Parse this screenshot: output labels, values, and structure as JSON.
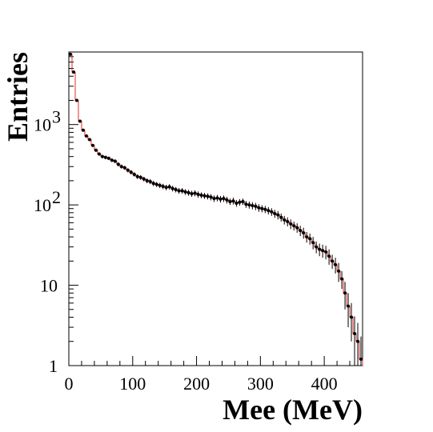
{
  "chart_data": {
    "type": "scatter",
    "xlabel": "Mee (MeV)",
    "ylabel": "Entries",
    "xlim": [
      0,
      460
    ],
    "ylim": [
      1,
      8000
    ],
    "yscale": "log",
    "grid": false,
    "x_ticks": [
      {
        "value": 0,
        "label": "0"
      },
      {
        "value": 100,
        "label": "100"
      },
      {
        "value": 200,
        "label": "200"
      },
      {
        "value": 300,
        "label": "300"
      },
      {
        "value": 400,
        "label": "400"
      }
    ],
    "y_ticks": [
      {
        "value": 1,
        "label": "1"
      },
      {
        "value": 10,
        "label": "10"
      },
      {
        "value": 100,
        "label": "10",
        "exp": "2"
      },
      {
        "value": 1000,
        "label": "10",
        "exp": "3"
      }
    ],
    "series": [
      {
        "kind": "data_points",
        "color": "#000000",
        "x": [
          2.5,
          7.5,
          12.5,
          17.5,
          22.5,
          27.5,
          32.5,
          37.5,
          42.5,
          47.5,
          52.5,
          57.5,
          62.5,
          67.5,
          72.5,
          77.5,
          82.5,
          87.5,
          92.5,
          97.5,
          102.5,
          107.5,
          112.5,
          117.5,
          122.5,
          127.5,
          132.5,
          137.5,
          142.5,
          147.5,
          152.5,
          157.5,
          162.5,
          167.5,
          172.5,
          177.5,
          182.5,
          187.5,
          192.5,
          197.5,
          202.5,
          207.5,
          212.5,
          217.5,
          222.5,
          227.5,
          232.5,
          237.5,
          242.5,
          247.5,
          252.5,
          257.5,
          262.5,
          267.5,
          272.5,
          277.5,
          282.5,
          287.5,
          292.5,
          297.5,
          302.5,
          307.5,
          312.5,
          317.5,
          322.5,
          327.5,
          332.5,
          337.5,
          342.5,
          347.5,
          352.5,
          357.5,
          362.5,
          367.5,
          372.5,
          377.5,
          382.5,
          387.5,
          392.5,
          397.5,
          402.5,
          407.5,
          412.5,
          417.5,
          422.5,
          427.5,
          432.5,
          437.5,
          442.5,
          447.5,
          452.5,
          457.5
        ],
        "y": [
          7500,
          4500,
          2000,
          1100,
          850,
          720,
          650,
          550,
          480,
          430,
          400,
          390,
          380,
          360,
          350,
          320,
          300,
          290,
          270,
          255,
          240,
          225,
          220,
          210,
          200,
          195,
          185,
          180,
          175,
          170,
          165,
          168,
          160,
          155,
          150,
          150,
          145,
          142,
          138,
          140,
          135,
          132,
          130,
          128,
          125,
          120,
          122,
          118,
          120,
          115,
          110,
          112,
          105,
          108,
          110,
          102,
          100,
          98,
          96,
          92,
          90,
          88,
          85,
          82,
          78,
          75,
          70,
          65,
          62,
          58,
          55,
          52,
          48,
          45,
          40,
          38,
          34,
          30,
          28,
          27,
          26,
          23,
          20,
          18,
          15,
          12,
          8,
          5.5,
          4,
          2.5,
          2,
          1.2
        ],
        "yerr": [
          90,
          70,
          45,
          33,
          29,
          27,
          25,
          23,
          22,
          21,
          20,
          20,
          19,
          19,
          19,
          18,
          17,
          17,
          16,
          16,
          15,
          15,
          15,
          14,
          14,
          14,
          14,
          13,
          13,
          13,
          13,
          13,
          13,
          12,
          12,
          12,
          12,
          12,
          12,
          12,
          12,
          11,
          11,
          11,
          11,
          11,
          11,
          11,
          11,
          11,
          10,
          11,
          10,
          10,
          10,
          10,
          10,
          10,
          10,
          10,
          9,
          9,
          9,
          9,
          9,
          9,
          8,
          8,
          8,
          8,
          7,
          7,
          7,
          7,
          6,
          6,
          6,
          5,
          5,
          5,
          5,
          5,
          4,
          4,
          4,
          3,
          3,
          2.5,
          2,
          1.6,
          1.4,
          1.1
        ]
      },
      {
        "kind": "fit_histogram",
        "color": "#d9302f",
        "x": [
          2.5,
          7.5,
          12.5,
          17.5,
          22.5,
          27.5,
          32.5,
          37.5,
          42.5,
          47.5,
          52.5,
          57.5,
          62.5,
          67.5,
          72.5,
          77.5,
          82.5,
          87.5,
          92.5,
          97.5,
          102.5,
          107.5,
          112.5,
          117.5,
          122.5,
          127.5,
          132.5,
          137.5,
          142.5,
          147.5,
          152.5,
          157.5,
          162.5,
          167.5,
          172.5,
          177.5,
          182.5,
          187.5,
          192.5,
          197.5,
          202.5,
          207.5,
          212.5,
          217.5,
          222.5,
          227.5,
          232.5,
          237.5,
          242.5,
          247.5,
          252.5,
          257.5,
          262.5,
          267.5,
          272.5,
          277.5,
          282.5,
          287.5,
          292.5,
          297.5,
          302.5,
          307.5,
          312.5,
          317.5,
          322.5,
          327.5,
          332.5,
          337.5,
          342.5,
          347.5,
          352.5,
          357.5,
          362.5,
          367.5,
          372.5,
          377.5,
          382.5,
          387.5,
          392.5,
          397.5,
          402.5,
          407.5,
          412.5,
          417.5,
          422.5,
          427.5,
          432.5,
          437.5,
          442.5,
          447.5,
          452.5,
          457.5
        ],
        "y": [
          7500,
          4500,
          2000,
          1100,
          850,
          720,
          650,
          550,
          480,
          430,
          400,
          390,
          380,
          360,
          350,
          320,
          300,
          290,
          270,
          255,
          240,
          225,
          220,
          210,
          200,
          195,
          185,
          180,
          175,
          170,
          165,
          168,
          160,
          155,
          150,
          150,
          145,
          142,
          138,
          140,
          135,
          132,
          130,
          128,
          125,
          120,
          122,
          118,
          120,
          115,
          110,
          112,
          105,
          108,
          110,
          102,
          100,
          98,
          96,
          92,
          90,
          88,
          85,
          82,
          78,
          75,
          70,
          65,
          62,
          58,
          55,
          52,
          48,
          45,
          40,
          38,
          34,
          30,
          28,
          27,
          26,
          23,
          20,
          18,
          15,
          12,
          8,
          5.5,
          4,
          2.5,
          2,
          1.2
        ]
      }
    ]
  }
}
